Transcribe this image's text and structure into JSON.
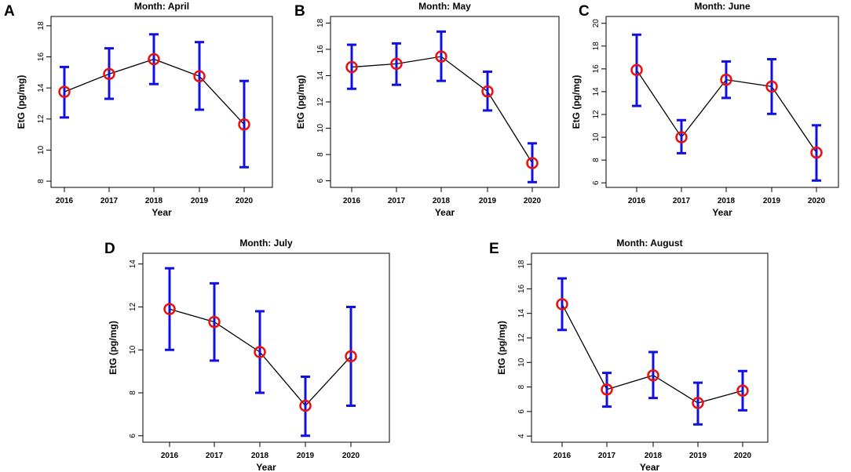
{
  "colors": {
    "errorbar": "#1010e0",
    "marker": "#e81010",
    "line": "#000000",
    "axis": "#000000"
  },
  "chart_data": [
    {
      "panel_label": "A",
      "type": "line",
      "title": "Month: April",
      "xlabel": "Year",
      "ylabel": "EtG (pg/mg)",
      "categories": [
        "2016",
        "2017",
        "2018",
        "2019",
        "2020"
      ],
      "series": [
        {
          "name": "April",
          "values": [
            13.75,
            14.9,
            15.85,
            14.75,
            11.65
          ],
          "lower": [
            12.1,
            13.3,
            14.25,
            12.6,
            8.9
          ],
          "upper": [
            15.35,
            16.55,
            17.45,
            16.95,
            14.45
          ]
        }
      ],
      "ylim": [
        7.6,
        18.6
      ],
      "yticks": [
        8,
        10,
        12,
        14,
        16,
        18
      ]
    },
    {
      "panel_label": "B",
      "type": "line",
      "title": "Month: May",
      "xlabel": "Year",
      "ylabel": "EtG (pg/mg)",
      "categories": [
        "2016",
        "2017",
        "2018",
        "2019",
        "2020"
      ],
      "series": [
        {
          "name": "May",
          "values": [
            14.65,
            14.9,
            15.45,
            12.8,
            7.35
          ],
          "lower": [
            13.0,
            13.3,
            13.6,
            11.35,
            5.9
          ],
          "upper": [
            16.35,
            16.45,
            17.35,
            14.3,
            8.85
          ]
        }
      ],
      "ylim": [
        5.5,
        18.5
      ],
      "yticks": [
        6,
        8,
        10,
        12,
        14,
        16,
        18
      ]
    },
    {
      "panel_label": "C",
      "type": "line",
      "title": "Month: June",
      "xlabel": "Year",
      "ylabel": "EtG (pg/mg)",
      "categories": [
        "2016",
        "2017",
        "2018",
        "2019",
        "2020"
      ],
      "series": [
        {
          "name": "June",
          "values": [
            15.9,
            10.0,
            15.05,
            14.45,
            8.65
          ],
          "lower": [
            12.75,
            8.6,
            13.45,
            12.05,
            6.2
          ],
          "upper": [
            19.0,
            11.5,
            16.65,
            16.85,
            11.05
          ]
        }
      ],
      "ylim": [
        5.6,
        20.6
      ],
      "yticks": [
        6,
        8,
        10,
        12,
        14,
        16,
        18,
        20
      ]
    },
    {
      "panel_label": "D",
      "type": "line",
      "title": "Month: July",
      "xlabel": "Year",
      "ylabel": "EtG (pg/mg)",
      "categories": [
        "2016",
        "2017",
        "2018",
        "2019",
        "2020"
      ],
      "series": [
        {
          "name": "July",
          "values": [
            11.9,
            11.3,
            9.9,
            7.4,
            9.7
          ],
          "lower": [
            10.0,
            9.5,
            8.0,
            6.0,
            7.4
          ],
          "upper": [
            13.8,
            13.1,
            11.8,
            8.75,
            12.0
          ]
        }
      ],
      "ylim": [
        5.7,
        14.5
      ],
      "yticks": [
        6,
        8,
        10,
        12,
        14
      ]
    },
    {
      "panel_label": "E",
      "type": "line",
      "title": "Month: August",
      "xlabel": "Year",
      "ylabel": "EtG (pg/mg)",
      "categories": [
        "2016",
        "2017",
        "2018",
        "2019",
        "2020"
      ],
      "series": [
        {
          "name": "August",
          "values": [
            14.75,
            7.8,
            8.95,
            6.7,
            7.7
          ],
          "lower": [
            12.65,
            6.4,
            7.1,
            4.95,
            6.1
          ],
          "upper": [
            16.85,
            9.15,
            10.85,
            8.35,
            9.3
          ]
        }
      ],
      "ylim": [
        3.5,
        18.9
      ],
      "yticks": [
        4,
        6,
        8,
        10,
        12,
        14,
        16,
        18
      ]
    }
  ]
}
